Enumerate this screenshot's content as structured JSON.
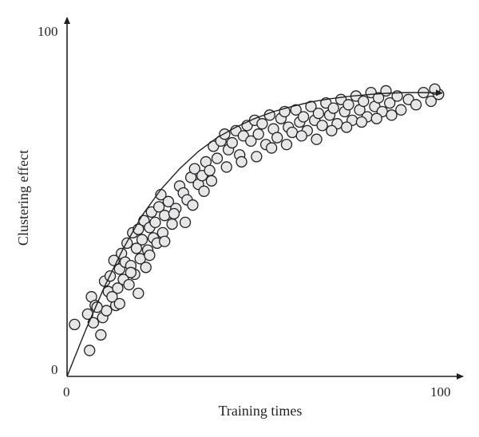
{
  "chart_data": {
    "type": "scatter",
    "title": "",
    "xlabel": "Training times",
    "ylabel": "Clustering effect",
    "xlim": [
      0,
      100
    ],
    "ylim": [
      0,
      100
    ],
    "x_tick_labels": [
      "0",
      "100"
    ],
    "y_tick_labels": [
      "0",
      "100"
    ],
    "grid": false,
    "legend": "none",
    "colors": {
      "axis": "#231f20",
      "point_fill": "#e6e7e8",
      "point_stroke": "#231f20",
      "curve": "#231f20"
    },
    "series": [
      {
        "type": "scatter",
        "points": [
          [
            2.0,
            15.0
          ],
          [
            6.0,
            7.5
          ],
          [
            6.5,
            23.0
          ],
          [
            7.0,
            15.5
          ],
          [
            7.5,
            20.5
          ],
          [
            5.5,
            18.0
          ],
          [
            9.0,
            12.0
          ],
          [
            9.5,
            17.0
          ],
          [
            10.0,
            27.5
          ],
          [
            10.5,
            19.0
          ],
          [
            11.0,
            24.5
          ],
          [
            11.5,
            29.0
          ],
          [
            12.5,
            33.5
          ],
          [
            13.0,
            20.5
          ],
          [
            13.5,
            25.5
          ],
          [
            14.0,
            31.0
          ],
          [
            14.5,
            35.5
          ],
          [
            15.0,
            28.0
          ],
          [
            15.5,
            33.0
          ],
          [
            16.0,
            38.5
          ],
          [
            16.5,
            26.5
          ],
          [
            17.0,
            32.0
          ],
          [
            17.5,
            41.5
          ],
          [
            18.0,
            29.5
          ],
          [
            18.5,
            37.0
          ],
          [
            19.0,
            42.5
          ],
          [
            19.5,
            34.0
          ],
          [
            20.0,
            39.5
          ],
          [
            20.5,
            45.0
          ],
          [
            21.0,
            31.5
          ],
          [
            21.5,
            36.5
          ],
          [
            22.0,
            43.0
          ],
          [
            22.5,
            47.5
          ],
          [
            23.0,
            40.0
          ],
          [
            23.5,
            44.5
          ],
          [
            24.0,
            38.5
          ],
          [
            24.5,
            49.0
          ],
          [
            25.0,
            52.5
          ],
          [
            25.5,
            41.5
          ],
          [
            26.0,
            46.5
          ],
          [
            27.0,
            50.5
          ],
          [
            28.0,
            44.0
          ],
          [
            29.0,
            48.5
          ],
          [
            30.0,
            55.0
          ],
          [
            31.0,
            53.0
          ],
          [
            32.0,
            51.0
          ],
          [
            33.0,
            57.5
          ],
          [
            34.0,
            60.0
          ],
          [
            35.0,
            55.5
          ],
          [
            36.0,
            58.0
          ],
          [
            37.0,
            62.0
          ],
          [
            38.0,
            59.5
          ],
          [
            39.0,
            66.5
          ],
          [
            40.0,
            63.0
          ],
          [
            41.0,
            68.0
          ],
          [
            42.0,
            70.0
          ],
          [
            43.0,
            65.5
          ],
          [
            44.0,
            67.5
          ],
          [
            45.0,
            71.0
          ],
          [
            46.0,
            64.0
          ],
          [
            47.0,
            69.5
          ],
          [
            48.0,
            72.5
          ],
          [
            49.0,
            68.0
          ],
          [
            50.0,
            74.0
          ],
          [
            51.0,
            70.0
          ],
          [
            52.0,
            73.0
          ],
          [
            53.0,
            67.0
          ],
          [
            54.0,
            75.5
          ],
          [
            55.0,
            71.5
          ],
          [
            56.0,
            69.0
          ],
          [
            57.0,
            74.5
          ],
          [
            58.0,
            76.5
          ],
          [
            59.0,
            72.0
          ],
          [
            60.0,
            70.5
          ],
          [
            61.0,
            77.0
          ],
          [
            62.0,
            73.5
          ],
          [
            63.0,
            75.0
          ],
          [
            64.0,
            71.0
          ],
          [
            65.0,
            78.0
          ],
          [
            66.0,
            74.0
          ],
          [
            67.0,
            76.0
          ],
          [
            68.0,
            72.5
          ],
          [
            69.0,
            79.0
          ],
          [
            70.0,
            75.5
          ],
          [
            71.0,
            77.5
          ],
          [
            72.0,
            73.0
          ],
          [
            73.0,
            80.0
          ],
          [
            74.0,
            76.5
          ],
          [
            75.0,
            78.5
          ],
          [
            76.0,
            74.0
          ],
          [
            77.0,
            81.0
          ],
          [
            78.0,
            77.0
          ],
          [
            79.0,
            79.5
          ],
          [
            80.0,
            75.0
          ],
          [
            81.0,
            82.0
          ],
          [
            82.0,
            78.0
          ],
          [
            83.0,
            80.5
          ],
          [
            84.0,
            76.5
          ],
          [
            85.0,
            82.5
          ],
          [
            86.0,
            79.0
          ],
          [
            88.0,
            81.0
          ],
          [
            89.0,
            77.0
          ],
          [
            91.0,
            80.0
          ],
          [
            93.0,
            78.5
          ],
          [
            95.0,
            82.0
          ],
          [
            97.0,
            79.5
          ],
          [
            99.0,
            81.5
          ],
          [
            98.0,
            83.0
          ],
          [
            8.0,
            20.0
          ],
          [
            12.0,
            23.0
          ],
          [
            14.0,
            21.0
          ],
          [
            17.0,
            30.0
          ],
          [
            19.0,
            24.0
          ],
          [
            22.0,
            35.0
          ],
          [
            26.0,
            39.0
          ],
          [
            28.5,
            47.0
          ],
          [
            31.5,
            44.5
          ],
          [
            33.5,
            49.5
          ],
          [
            36.5,
            53.5
          ],
          [
            38.5,
            56.5
          ],
          [
            42.5,
            60.5
          ],
          [
            46.5,
            62.0
          ],
          [
            50.5,
            63.5
          ],
          [
            54.5,
            66.0
          ],
          [
            58.5,
            67.0
          ],
          [
            62.5,
            69.5
          ],
          [
            66.5,
            68.5
          ],
          [
            70.5,
            71.0
          ],
          [
            74.5,
            72.0
          ],
          [
            78.5,
            73.5
          ],
          [
            82.5,
            74.5
          ],
          [
            86.5,
            75.5
          ]
        ]
      },
      {
        "type": "line",
        "points": [
          [
            0,
            0
          ],
          [
            5,
            13.5
          ],
          [
            10,
            26.0
          ],
          [
            15,
            37.0
          ],
          [
            20,
            46.5
          ],
          [
            25,
            54.0
          ],
          [
            30,
            60.0
          ],
          [
            35,
            65.0
          ],
          [
            40,
            69.0
          ],
          [
            45,
            72.0
          ],
          [
            50,
            74.5
          ],
          [
            55,
            76.5
          ],
          [
            60,
            78.0
          ],
          [
            65,
            79.3
          ],
          [
            70,
            80.2
          ],
          [
            75,
            80.9
          ],
          [
            80,
            81.4
          ],
          [
            85,
            81.8
          ],
          [
            90,
            82.0
          ],
          [
            95,
            82.0
          ],
          [
            100,
            81.9
          ]
        ]
      }
    ]
  }
}
